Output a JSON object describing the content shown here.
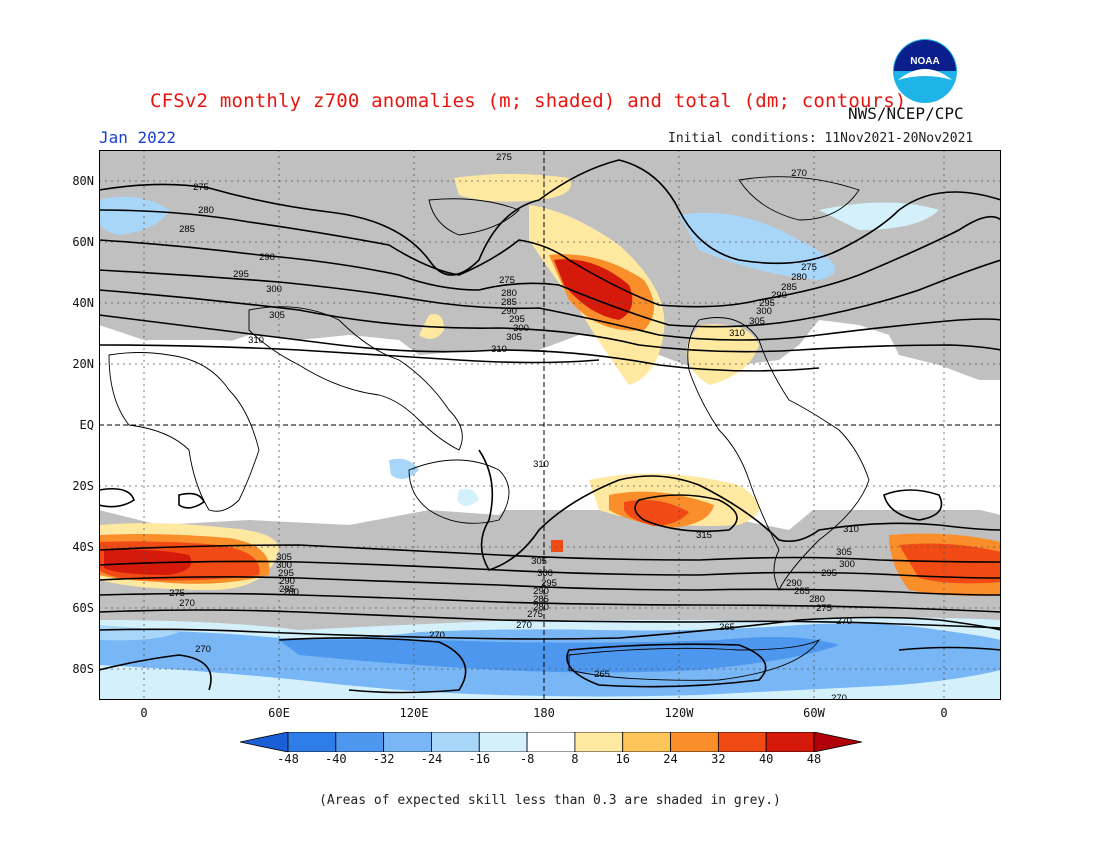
{
  "header": {
    "title": "CFSv2 monthly z700 anomalies (m; shaded) and total (dm; contours)",
    "month": "Jan 2022",
    "initial_conditions": "Initial conditions: 11Nov2021-20Nov2021",
    "agency": "NWS/NCEP/CPC",
    "logo_text": "NOAA"
  },
  "map": {
    "lat_labels": [
      "80N",
      "60N",
      "40N",
      "20N",
      "EQ",
      "20S",
      "40S",
      "60S",
      "80S"
    ],
    "lon_labels": [
      "0",
      "60E",
      "120E",
      "180",
      "120W",
      "60W",
      "0"
    ],
    "contour_labels": {
      "c275_n": "275",
      "c270_ne": "270",
      "c275_nw": "275",
      "c280_nw": "280",
      "c285_nw": "285",
      "c290": "290",
      "c295": "295",
      "c300": "300",
      "c305": "305",
      "c310": "310",
      "c275_p": "275",
      "c280_p": "280",
      "c285_p": "285",
      "c290_p": "290",
      "c295_p": "295",
      "c300_p": "300",
      "c305_p": "305",
      "c310_p": "310",
      "c275_at": "275",
      "c280_at": "280",
      "c285_at": "285",
      "c290_at": "290",
      "c295_at": "295",
      "c300_at": "300",
      "c305_at": "305",
      "c310_at": "310",
      "c310_s": "310",
      "c315_s": "315",
      "s305": "305",
      "s300": "300",
      "s295": "295",
      "s290": "290",
      "s285": "285",
      "s280": "280",
      "s275": "275",
      "s270": "270",
      "a305": "305",
      "a300": "300",
      "a295": "295",
      "a290": "290",
      "a285": "285",
      "a280": "280",
      "a275": "275",
      "a270": "270",
      "a265": "265",
      "se310": "310",
      "se305": "305",
      "se300": "300",
      "se295": "295",
      "se290": "290",
      "se285": "285",
      "se280": "280",
      "se275": "275",
      "se270": "270",
      "w275": "275",
      "w270": "270",
      "w270b": "270",
      "pole270": "270",
      "pole265": "265"
    }
  },
  "colorbar": {
    "labels": [
      "-48",
      "-40",
      "-32",
      "-24",
      "-16",
      "-8",
      "8",
      "16",
      "24",
      "32",
      "40",
      "48"
    ],
    "colors": [
      "#1b5fd6",
      "#2f7de6",
      "#4d97ee",
      "#78b6f5",
      "#a8d6f9",
      "#d4f1fb",
      "#ffffff",
      "#ffe9a1",
      "#fdc45a",
      "#f98e2b",
      "#f14a14",
      "#d51a0c",
      "#b0000a"
    ]
  },
  "footer": "(Areas of expected skill less than 0.3 are shaded in grey.)"
}
